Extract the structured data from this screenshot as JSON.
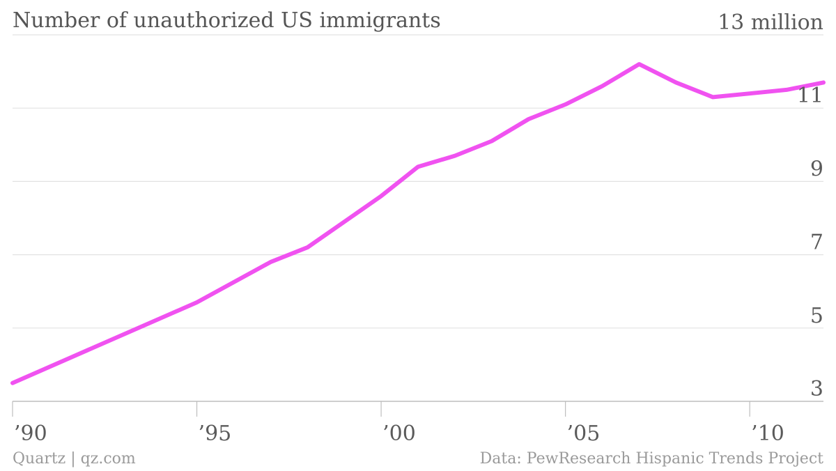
{
  "header": {
    "title": "Number of unauthorized US immigrants"
  },
  "footer": {
    "credit": "Quartz | qz.com",
    "source": "Data: PewResearch Hispanic Trends Project"
  },
  "colors": {
    "line": "#f052f0",
    "grid": "#e2e2e2",
    "axis": "#bdbdbd",
    "text": "#5a5a5a"
  },
  "chart_data": {
    "type": "line",
    "title": "Number of unauthorized US immigrants",
    "xlabel": "",
    "ylabel": "",
    "xlim": [
      1990,
      2012
    ],
    "ylim": [
      3,
      13
    ],
    "grid": true,
    "y_axis_position": "right",
    "x_ticks": [
      {
        "value": 1990,
        "label": "’90"
      },
      {
        "value": 1995,
        "label": "’95"
      },
      {
        "value": 2000,
        "label": "’00"
      },
      {
        "value": 2005,
        "label": "’05"
      },
      {
        "value": 2010,
        "label": "’10"
      }
    ],
    "y_ticks": [
      {
        "value": 3,
        "label": "3"
      },
      {
        "value": 5,
        "label": "5"
      },
      {
        "value": 7,
        "label": "7"
      },
      {
        "value": 9,
        "label": "9"
      },
      {
        "value": 11,
        "label": "11"
      },
      {
        "value": 13,
        "label": "13 million"
      }
    ],
    "series": [
      {
        "x": [
          1990,
          1995,
          1997,
          1998,
          1999,
          2000,
          2001,
          2002,
          2003,
          2004,
          2005,
          2006,
          2007,
          2008,
          2009,
          2010,
          2011,
          2012
        ],
        "values": [
          3.5,
          5.7,
          6.8,
          7.2,
          7.9,
          8.6,
          9.4,
          9.7,
          10.1,
          10.7,
          11.1,
          11.6,
          12.2,
          11.7,
          11.3,
          11.4,
          11.5,
          11.7
        ]
      }
    ]
  }
}
